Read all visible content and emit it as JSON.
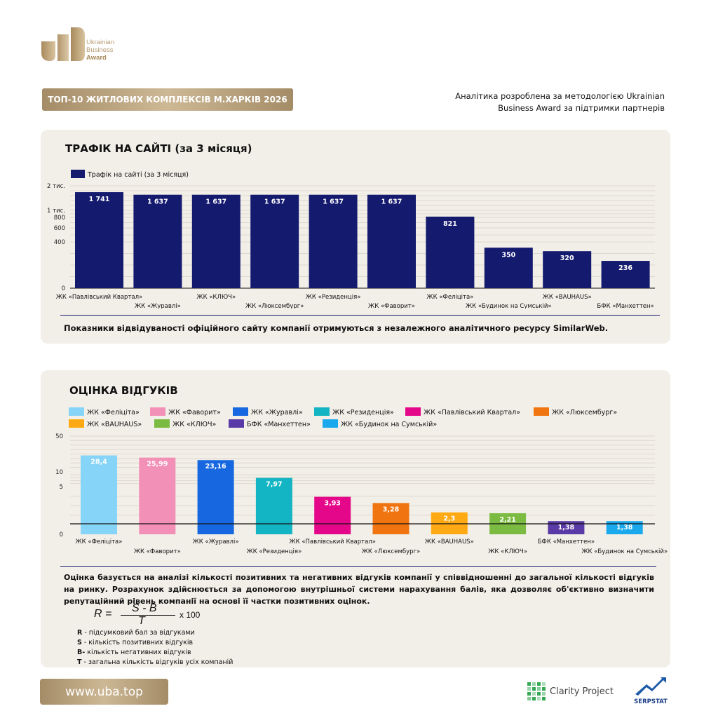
{
  "header": {
    "logo_lines": [
      "Ukrainian",
      "Business",
      "Award"
    ],
    "banner_title": "ТОП-10 ЖИТЛОВИХ КОМПЛЕКСІВ М.ХАРКІВ 2026",
    "intro_line1": "Аналітика розроблена за методологією Ukrainian",
    "intro_line2": "Business Award за підтримки партнерів"
  },
  "traffic": {
    "title": "ТРАФІК НА САЙТІ (за 3 місяця)",
    "note": "Показники відвідуваності офіційного сайту компанії отримуються з незалежного аналітичного ресурсу SimilarWeb."
  },
  "reviews": {
    "title": "ОЦІНКА ВІДГУКІВ",
    "description": "Оцінка базується на аналізі кількості позитивних та негативних відгуків компанії у співвідношенні до загальної кількості відгуків на ринку. Розрахунок здійснюється за допомогою внутрішньої системи нарахування балів, яка дозволяє об'єктивно визначити репутаційний рівень компанії на основі її частки позитивних оцінок.",
    "formula": {
      "lhs": "R =",
      "numerator": "S - B",
      "denominator": "T",
      "multiplier": "x 100"
    },
    "definitions": [
      {
        "key": "R",
        "text": " - підсумковий бал за відгуками"
      },
      {
        "key": "S",
        "text": " - кількість позитивних відгуків"
      },
      {
        "key": "B-",
        "text": "  кількість негативних відгуків"
      },
      {
        "key": "T",
        "text": " - загальна кількість відгуків усіх компаній"
      }
    ]
  },
  "footer": {
    "url": "www.uba.top",
    "partner1": "Clarity Project",
    "partner2": "SERPSTAT"
  },
  "colors": {
    "navy": "#141a6e",
    "gold": "#b79d76",
    "panel_bg": "#f2efe8"
  },
  "chart_data": [
    {
      "type": "bar",
      "legend": "Трафік на сайті (за 3 місяця)",
      "legend_position": "top-left",
      "categories": [
        "ЖК «Павлівський Квартал»",
        "ЖК «Журавлі»",
        "ЖК «КЛЮЧ»",
        "ЖК «Люксембург»",
        "ЖК «Резиденція»",
        "ЖК «Фаворит»",
        "ЖК «Felicità»",
        "ЖК «Будинок на Сумській»",
        "ЖК «BAUHAUS»",
        "БФК «Манхеттен»"
      ],
      "category_labels": [
        "ЖК «Павлівський Квартал»",
        "ЖК «Журавлі»",
        "ЖК «КЛЮЧ»",
        "ЖК «Люксембург»",
        "ЖК «Резиденція»",
        "ЖК «Фаворит»",
        "ЖК «Феліціта»",
        "ЖК «Будинок на Сумській»",
        "ЖК «BAUHAUS»",
        "БФК «Манхеттен»"
      ],
      "values": [
        1741,
        1637,
        1637,
        1637,
        1637,
        1637,
        821,
        350,
        320,
        236
      ],
      "value_labels": [
        "1 741",
        "1 637",
        "1 637",
        "1 637",
        "1 637",
        "1 637",
        "821",
        "350",
        "320",
        "236"
      ],
      "y_ticks": [
        {
          "value": 0,
          "label": "0"
        },
        {
          "value": 400,
          "label": "400"
        },
        {
          "value": 600,
          "label": "600"
        },
        {
          "value": 800,
          "label": "800"
        },
        {
          "value": 1000,
          "label": "1 тис."
        },
        {
          "value": 2000,
          "label": "2 тис."
        }
      ],
      "ylim": [
        0,
        2000
      ],
      "scale": "log-like",
      "color": "#141a6e",
      "grid": true
    },
    {
      "type": "bar",
      "categories": [
        "ЖК «Felicità»",
        "ЖК «Фаворит»",
        "ЖК «Журавлі»",
        "ЖК «Резиденція»",
        "ЖК «Павлівський Квартал»",
        "ЖК «Люксембург»",
        "ЖК «BAUHAUS»",
        "ЖК «КЛЮЧ»",
        "БФК «Манхеттен»",
        "ЖК «Будинок на Сумській»"
      ],
      "legend_labels": [
        "ЖК «Феліціта»",
        "ЖК «Фаворит»",
        "ЖК «Журавлі»",
        "ЖК «Резиденція»",
        "ЖК «Павлівський Квартал»",
        "ЖК «Люксембург»",
        "ЖК «BAUHAUS»",
        "ЖК «КЛЮЧ»",
        "БФК «Манхеттен»",
        "ЖК «Будинок на Сумській»"
      ],
      "axis_labels": [
        "ЖК «Феліціта»",
        "ЖК «Фаворит»",
        "ЖК «Журавлі»",
        "ЖК «Резиденція»",
        "ЖК «Павлівський Квартал»",
        "ЖК «Люксембург»",
        "ЖК «BAUHAUS»",
        "ЖК «КЛЮЧ»",
        "БФК «Манхеттен»",
        "ЖК «Будинок на Сумській»"
      ],
      "values": [
        28.4,
        25.99,
        23.16,
        7.97,
        3.93,
        3.28,
        2.3,
        2.21,
        1.38,
        1.38
      ],
      "value_labels": [
        "28,4",
        "25,99",
        "23,16",
        "7,97",
        "3,93",
        "3,28",
        "2,3",
        "2,21",
        "1,38",
        "1,38"
      ],
      "colors": [
        "#86d4f8",
        "#f390b7",
        "#1768e0",
        "#13b4c3",
        "#e5078a",
        "#f07510",
        "#ffaa14",
        "#7cbb42",
        "#5a3aa6",
        "#19a9ec"
      ],
      "y_ticks": [
        {
          "value": 0,
          "label": "0"
        },
        {
          "value": 5,
          "label": "5"
        },
        {
          "value": 10,
          "label": "10"
        },
        {
          "value": 50,
          "label": "50"
        }
      ],
      "ylim": [
        0,
        50
      ],
      "scale": "log-like",
      "grid": true,
      "legend_position": "top"
    }
  ]
}
